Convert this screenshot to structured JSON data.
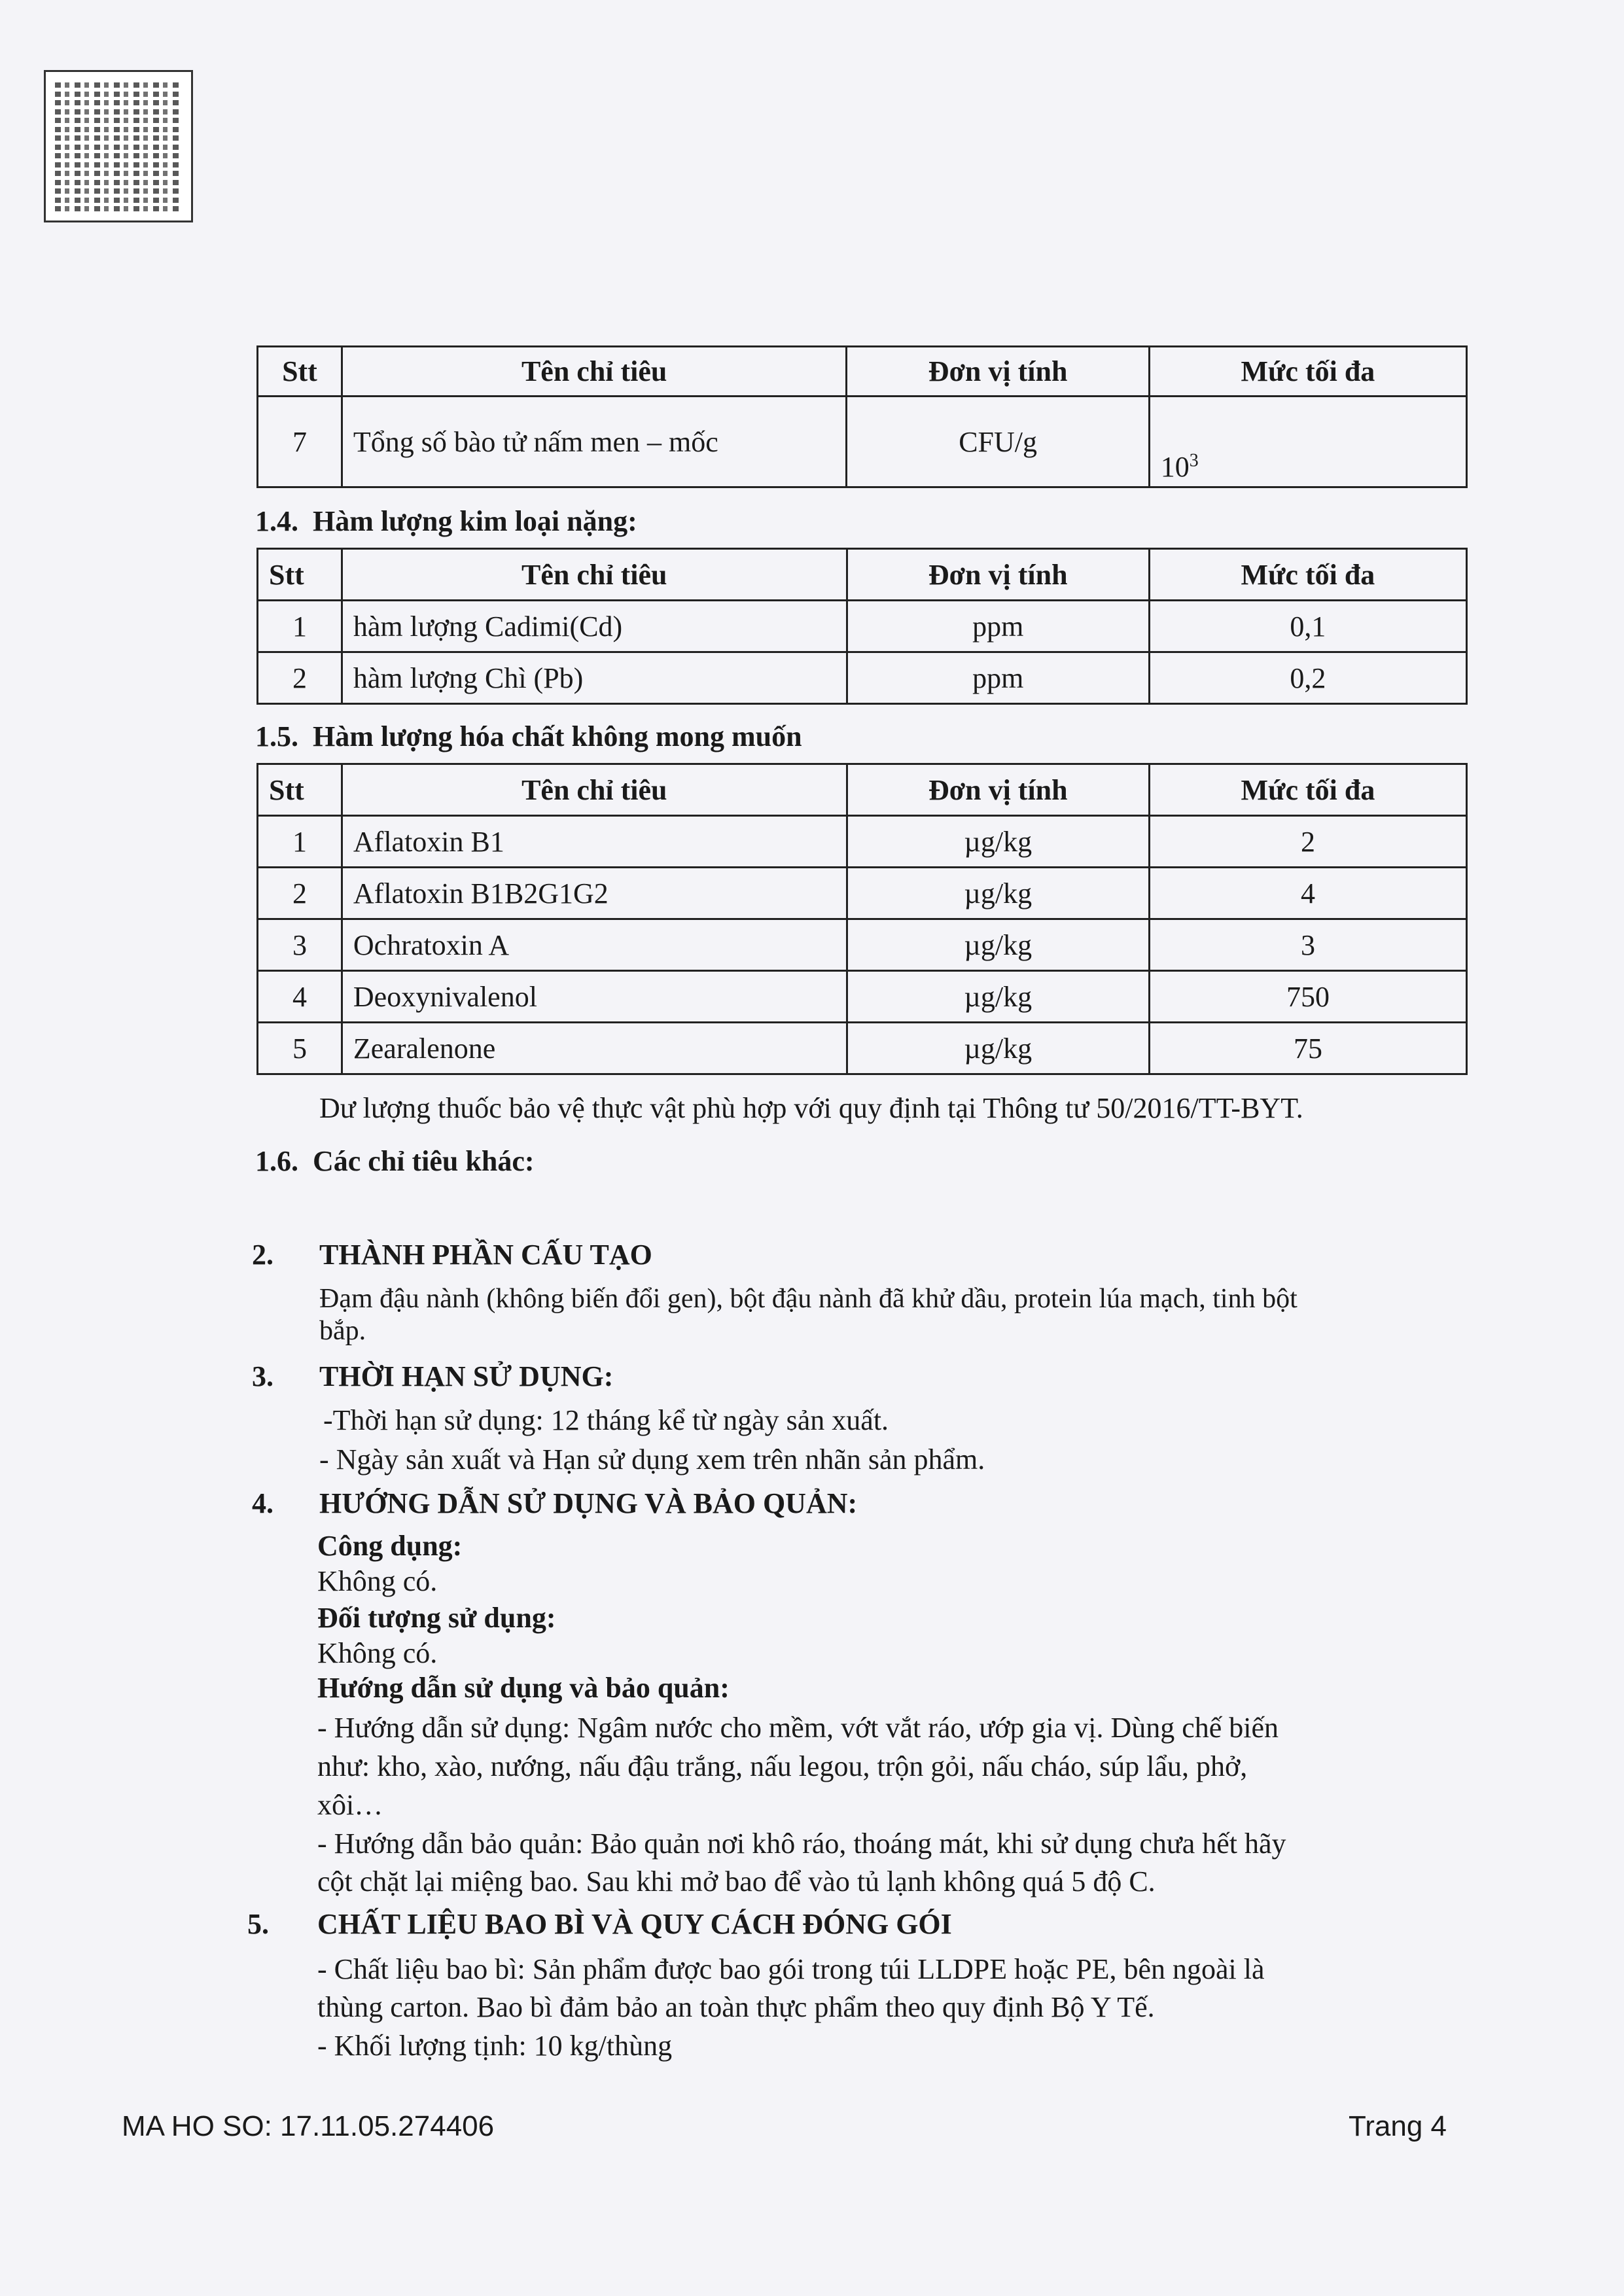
{
  "qr_code": {
    "icon": "qr-code-icon"
  },
  "table_microbial": {
    "headers": [
      "Stt",
      "Tên chỉ tiêu",
      "Đơn vị tính",
      "Mức tối đa"
    ],
    "rows": [
      {
        "stt": "7",
        "name": "Tổng số bào tử nấm men – mốc",
        "unit": "CFU/g",
        "max_base": "10",
        "max_exp": "3"
      }
    ]
  },
  "section_1_4": {
    "number": "1.4.",
    "title": "Hàm lượng kim loại nặng:",
    "headers": [
      "Stt",
      "Tên chỉ tiêu",
      "Đơn vị tính",
      "Mức tối đa"
    ],
    "rows": [
      {
        "stt": "1",
        "name": "hàm lượng Cadimi(Cd)",
        "unit": "ppm",
        "max": "0,1"
      },
      {
        "stt": "2",
        "name": "hàm lượng Chì (Pb)",
        "unit": "ppm",
        "max": "0,2"
      }
    ]
  },
  "section_1_5": {
    "number": "1.5.",
    "title": "Hàm lượng hóa chất không mong muốn",
    "headers": [
      "Stt",
      "Tên chỉ tiêu",
      "Đơn vị tính",
      "Mức tối đa"
    ],
    "rows": [
      {
        "stt": "1",
        "name": "Aflatoxin B1",
        "unit": "µg/kg",
        "max": "2"
      },
      {
        "stt": "2",
        "name": "Aflatoxin B1B2G1G2",
        "unit": "µg/kg",
        "max": "4"
      },
      {
        "stt": "3",
        "name": "Ochratoxin A",
        "unit": "µg/kg",
        "max": "3"
      },
      {
        "stt": "4",
        "name": "Deoxynivalenol",
        "unit": "µg/kg",
        "max": "750"
      },
      {
        "stt": "5",
        "name": "Zearalenone",
        "unit": "µg/kg",
        "max": "75"
      }
    ],
    "note": "Dư lượng thuốc bảo vệ thực vật phù hợp với quy định tại Thông tư 50/2016/TT-BYT."
  },
  "section_1_6": {
    "number": "1.6.",
    "title": "Các chỉ tiêu khác:"
  },
  "section_2": {
    "number": "2.",
    "title": "THÀNH PHẦN CẤU TẠO",
    "lines": [
      "Đạm đậu nành (không biến đổi gen), bột đậu nành đã khử dầu,  protein lúa mạch, tinh bột",
      "bắp."
    ]
  },
  "section_3": {
    "number": "3.",
    "title": "THỜI HẠN SỬ DỤNG:",
    "lines": [
      "-Thời hạn sử dụng: 12 tháng kể từ ngày sản xuất.",
      "- Ngày sản xuất và Hạn sử dụng xem trên nhãn sản phẩm."
    ]
  },
  "section_4": {
    "number": "4.",
    "title": "HƯỚNG DẪN SỬ DỤNG VÀ BẢO QUẢN:",
    "uses_label": "Công dụng:",
    "uses_value": "Không có.",
    "target_label": "Đối tượng sử dụng:",
    "target_value": "Không có.",
    "guide_label": "Hướng dẫn sử dụng và bảo quản:",
    "guide_lines": [
      "- Hướng dẫn sử dụng: Ngâm nước cho mềm, vớt vắt ráo, ướp gia vị. Dùng chế biến",
      "như: kho, xào, nướng, nấu đậu trắng, nấu legou, trộn gỏi, nấu cháo, súp lẩu, phở,",
      "xôi…",
      "- Hướng dẫn bảo quản: Bảo quản nơi khô ráo, thoáng mát, khi sử dụng chưa hết hãy",
      "cột chặt lại miệng bao. Sau khi mở  bao để vào tủ lạnh không quá 5 độ C."
    ]
  },
  "section_5": {
    "number": "5.",
    "title": "CHẤT LIỆU BAO BÌ VÀ QUY CÁCH ĐÓNG GÓI",
    "lines": [
      "- Chất liệu bao bì: Sản phẩm được bao gói trong túi LLDPE hoặc PE, bên ngoài là",
      "thùng carton. Bao bì đảm bảo an toàn thực phẩm theo quy định Bộ Y Tế.",
      "- Khối lượng tịnh: 10 kg/thùng"
    ]
  },
  "footer": {
    "dossier": "MA HO SO: 17.11.05.274406",
    "page": "Trang 4"
  }
}
